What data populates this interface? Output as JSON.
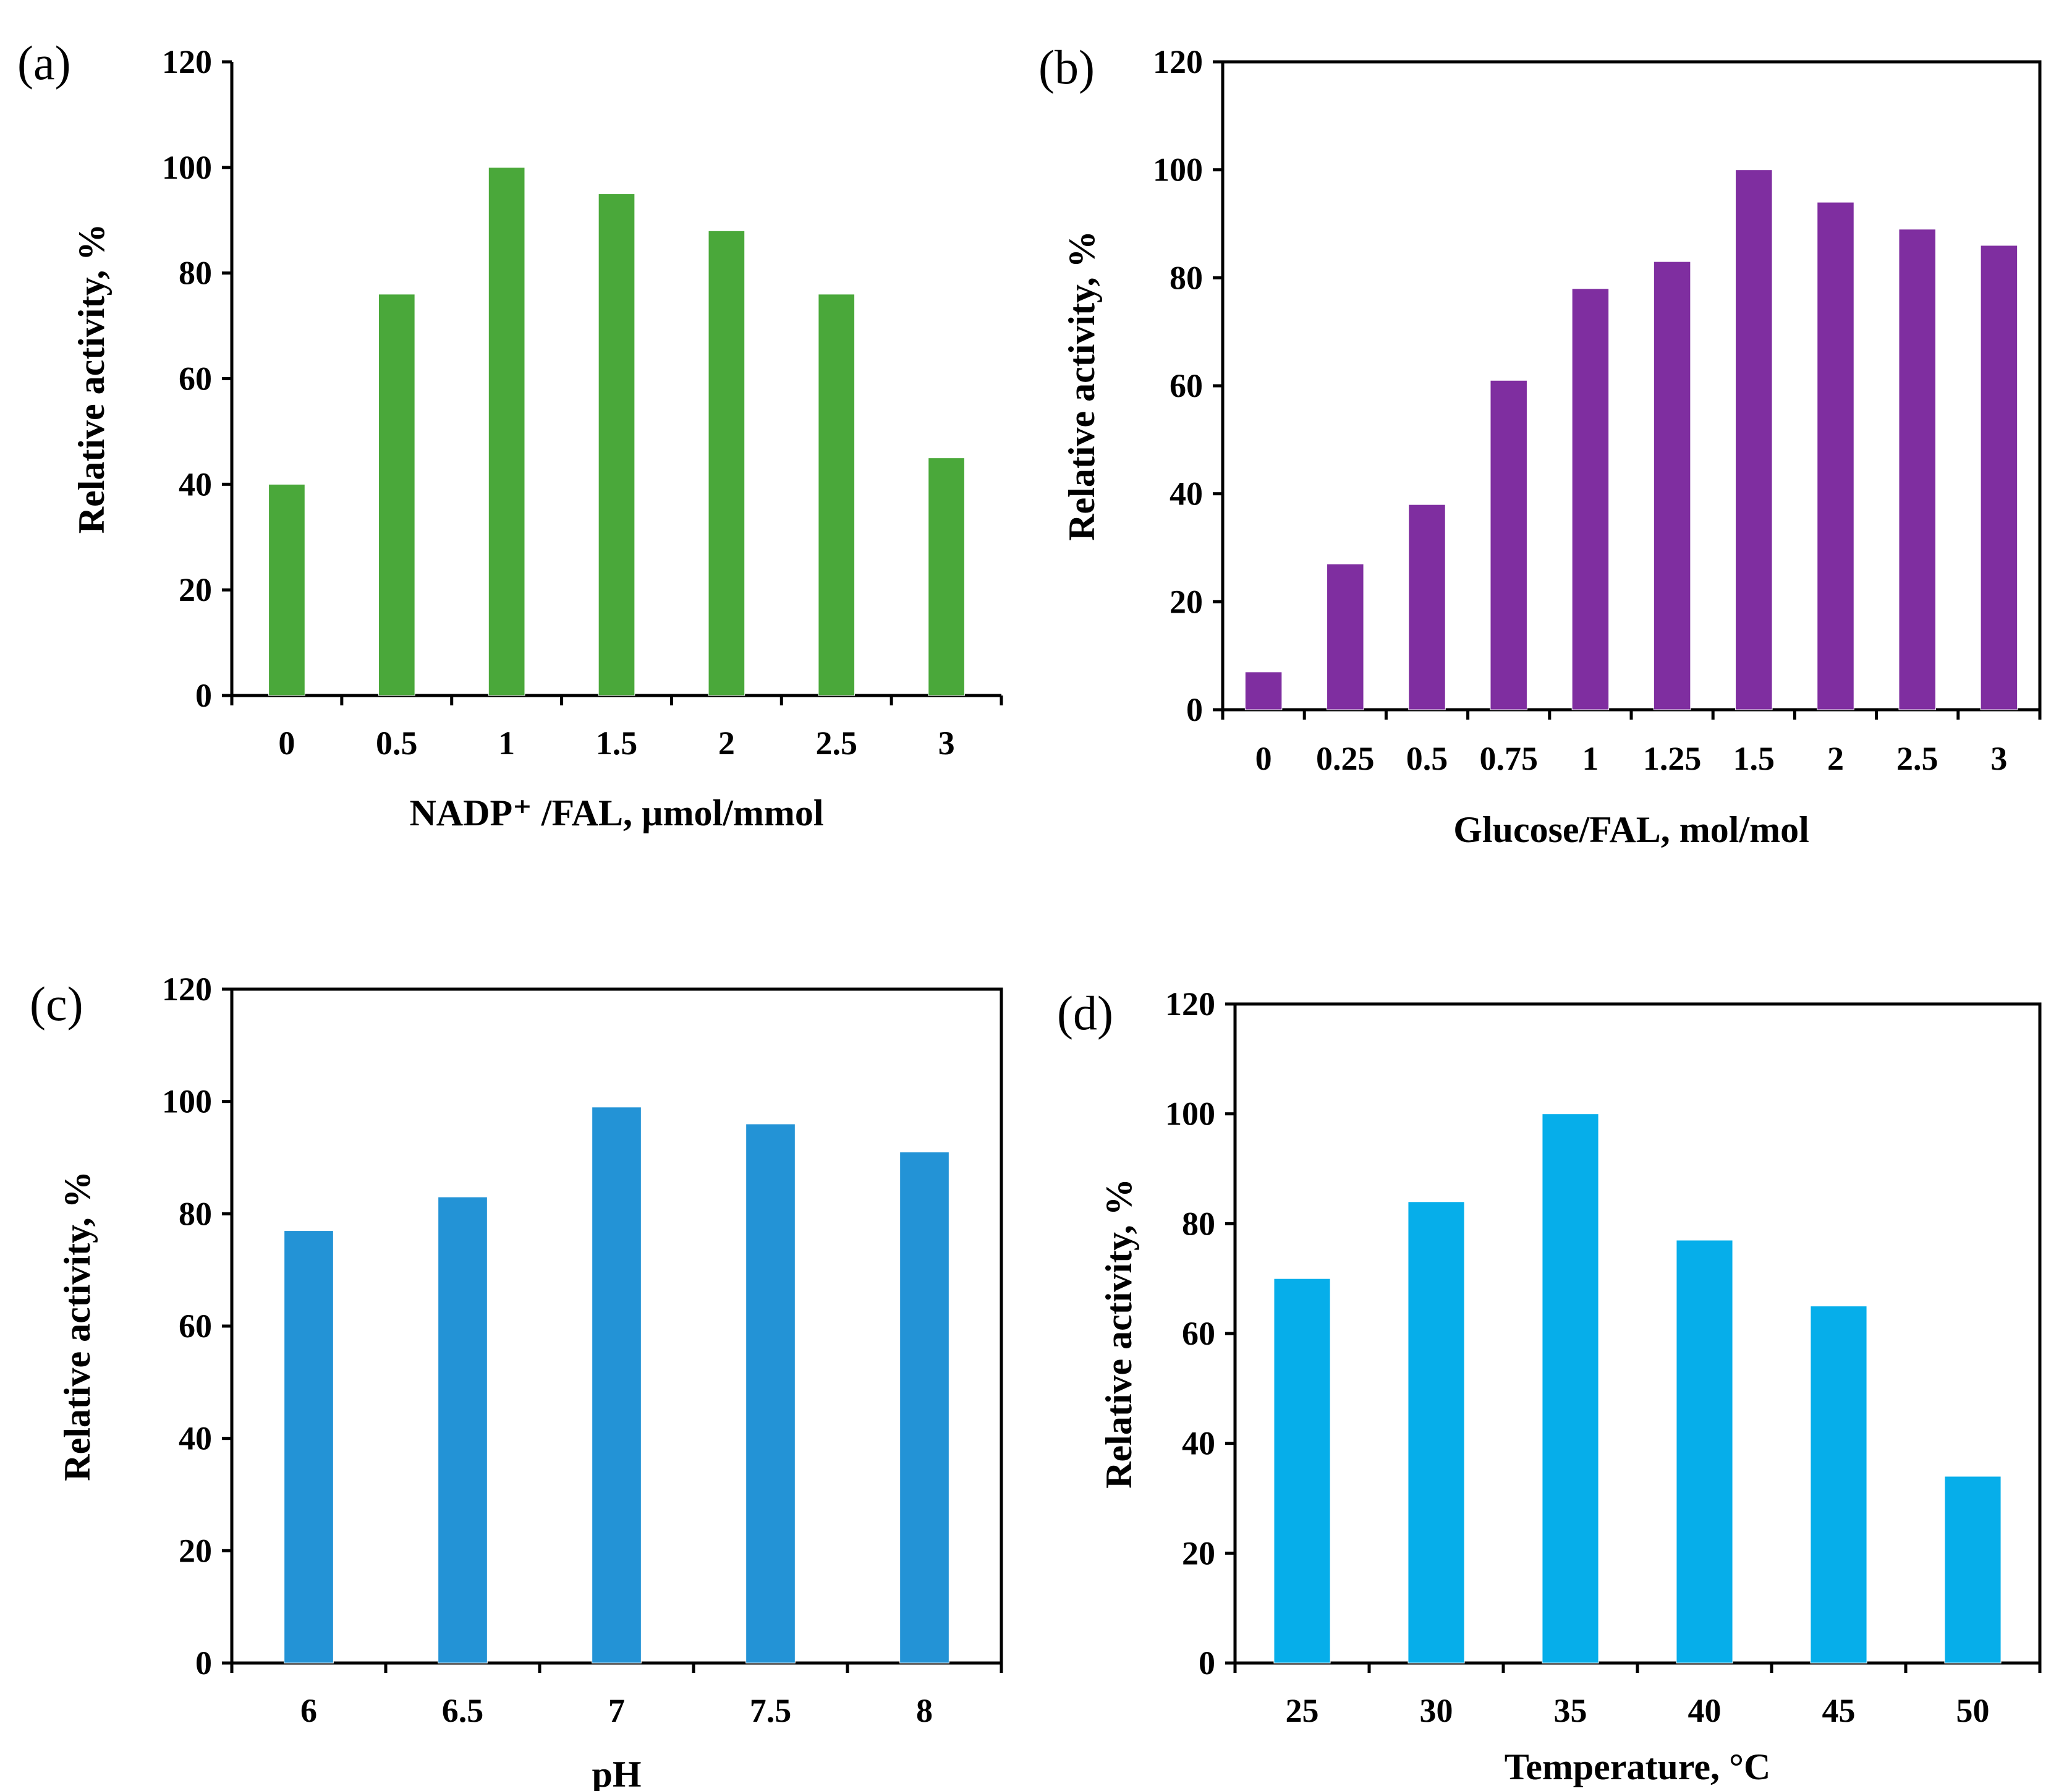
{
  "figure": {
    "colors": {
      "a": "#4aa83a",
      "b": "#7f2ea0",
      "c": "#2393d6",
      "d": "#06aeea"
    }
  },
  "chart_data": [
    {
      "id": "a",
      "type": "bar",
      "panel_label": "(a)",
      "categories": [
        "0",
        "0.5",
        "1",
        "1.5",
        "2",
        "2.5",
        "3"
      ],
      "values": [
        40,
        76,
        100,
        95,
        88,
        76,
        45
      ],
      "xlabel": "NADP⁺ /FAL, µmol/mmol",
      "ylabel": "Relative activity, %",
      "ylim": [
        0,
        120
      ],
      "yticks": [
        "0",
        "20",
        "40",
        "60",
        "80",
        "100",
        "120"
      ],
      "grid": false
    },
    {
      "id": "b",
      "type": "bar",
      "panel_label": "(b)",
      "categories": [
        "0",
        "0.25",
        "0.5",
        "0.75",
        "1",
        "1.25",
        "1.5",
        "2",
        "2.5",
        "3"
      ],
      "values": [
        7,
        27,
        38,
        61,
        78,
        83,
        100,
        94,
        89,
        86
      ],
      "xlabel": "Glucose/FAL, mol/mol",
      "ylabel": "Relative activity, %",
      "ylim": [
        0,
        120
      ],
      "yticks": [
        "0",
        "20",
        "40",
        "60",
        "80",
        "100",
        "120"
      ],
      "grid": false
    },
    {
      "id": "c",
      "type": "bar",
      "panel_label": "(c)",
      "categories": [
        "6",
        "6.5",
        "7",
        "7.5",
        "8"
      ],
      "values": [
        77,
        83,
        99,
        96,
        91
      ],
      "xlabel": "pH",
      "ylabel": "Relative activity, %",
      "ylim": [
        0,
        120
      ],
      "yticks": [
        "0",
        "20",
        "40",
        "60",
        "80",
        "100",
        "120"
      ],
      "grid": false
    },
    {
      "id": "d",
      "type": "bar",
      "panel_label": "(d)",
      "categories": [
        "25",
        "30",
        "35",
        "40",
        "45",
        "50"
      ],
      "values": [
        70,
        84,
        100,
        77,
        65,
        34
      ],
      "xlabel": "Temperature, °C",
      "ylabel": "Relative activity, %",
      "ylim": [
        0,
        120
      ],
      "yticks": [
        "0",
        "20",
        "40",
        "60",
        "80",
        "100",
        "120"
      ],
      "grid": false
    }
  ]
}
